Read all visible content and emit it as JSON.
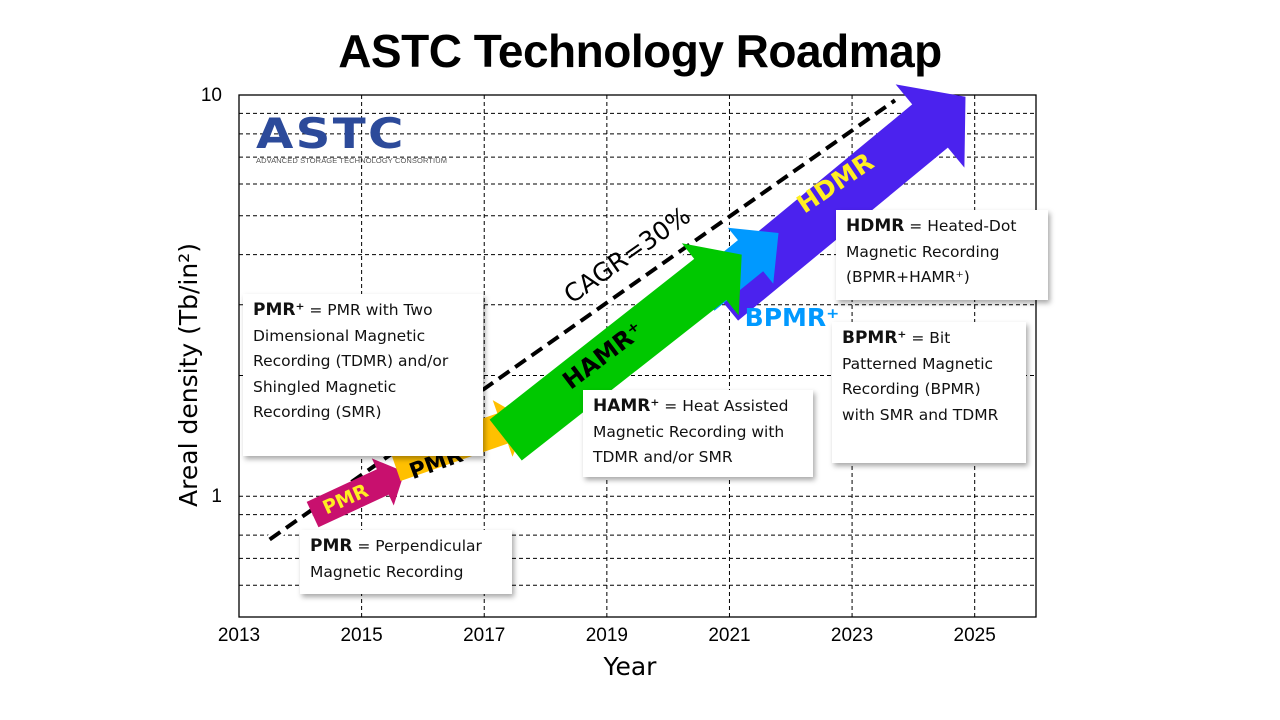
{
  "title": "ASTC Technology Roadmap",
  "logo": {
    "text": "ASTC",
    "subtitle": "ADVANCED STORAGE TECHNOLOGY CONSORTIUM",
    "color": "#2c4a9a"
  },
  "chart_data": {
    "type": "line",
    "title": "ASTC Technology Roadmap",
    "xlabel": "Year",
    "ylabel": "Areal density (Tb/in²)",
    "xlim": [
      2013,
      2026
    ],
    "ylim": [
      0.5,
      10
    ],
    "yscale": "log",
    "x_ticks": [
      "2013",
      "2015",
      "2017",
      "2019",
      "2021",
      "2023",
      "2025"
    ],
    "y_ticks": [
      "1",
      "10"
    ],
    "grid": true,
    "trend_line": {
      "label": "CAGR=30%",
      "start": [
        2013.5,
        0.78
      ],
      "end": [
        2023.7,
        9.7
      ],
      "style": "dashed",
      "color": "#000000"
    },
    "technologies": [
      {
        "name": "PMR",
        "start": [
          2014.2,
          0.9
        ],
        "end": [
          2015.7,
          1.15
        ],
        "color": "#c8106e",
        "label_color": "#ffee22"
      },
      {
        "name": "PMR⁺",
        "start": [
          2015.55,
          1.19
        ],
        "end": [
          2017.7,
          1.55
        ],
        "color": "#ffc000",
        "label_color": "#000000"
      },
      {
        "name": "HAMR⁺",
        "start": [
          2017.35,
          1.38
        ],
        "end": [
          2021.2,
          4.0
        ],
        "color": "#00c800",
        "label_color": "#000000"
      },
      {
        "name": "HDMR",
        "start": [
          2020.85,
          3.1
        ],
        "end": [
          2024.85,
          9.9
        ],
        "color": "#4b22ee",
        "label_color": "#ffee22"
      },
      {
        "name": "BPMR⁺",
        "start": [
          2020.55,
          3.17
        ],
        "end": [
          2021.8,
          4.53
        ],
        "color": "#0099ff",
        "label_color": "#0099ff"
      }
    ]
  },
  "callouts": [
    {
      "term": "PMR⁺",
      "text": " = PMR with Two Dimensional Magnetic Recording (TDMR) and/or Shingled Magnetic Recording (SMR)"
    },
    {
      "term": "PMR",
      "text": " = Perpendicular Magnetic Recording"
    },
    {
      "term": "HAMR⁺",
      "text": " = Heat Assisted Magnetic Recording with TDMR and/or SMR"
    },
    {
      "term": "HDMR",
      "text": " = Heated-Dot Magnetic Recording (BPMR+HAMR⁺)"
    },
    {
      "term": "BPMR⁺",
      "text": " = Bit Patterned Magnetic Recording (BPMR) with SMR and TDMR"
    }
  ]
}
